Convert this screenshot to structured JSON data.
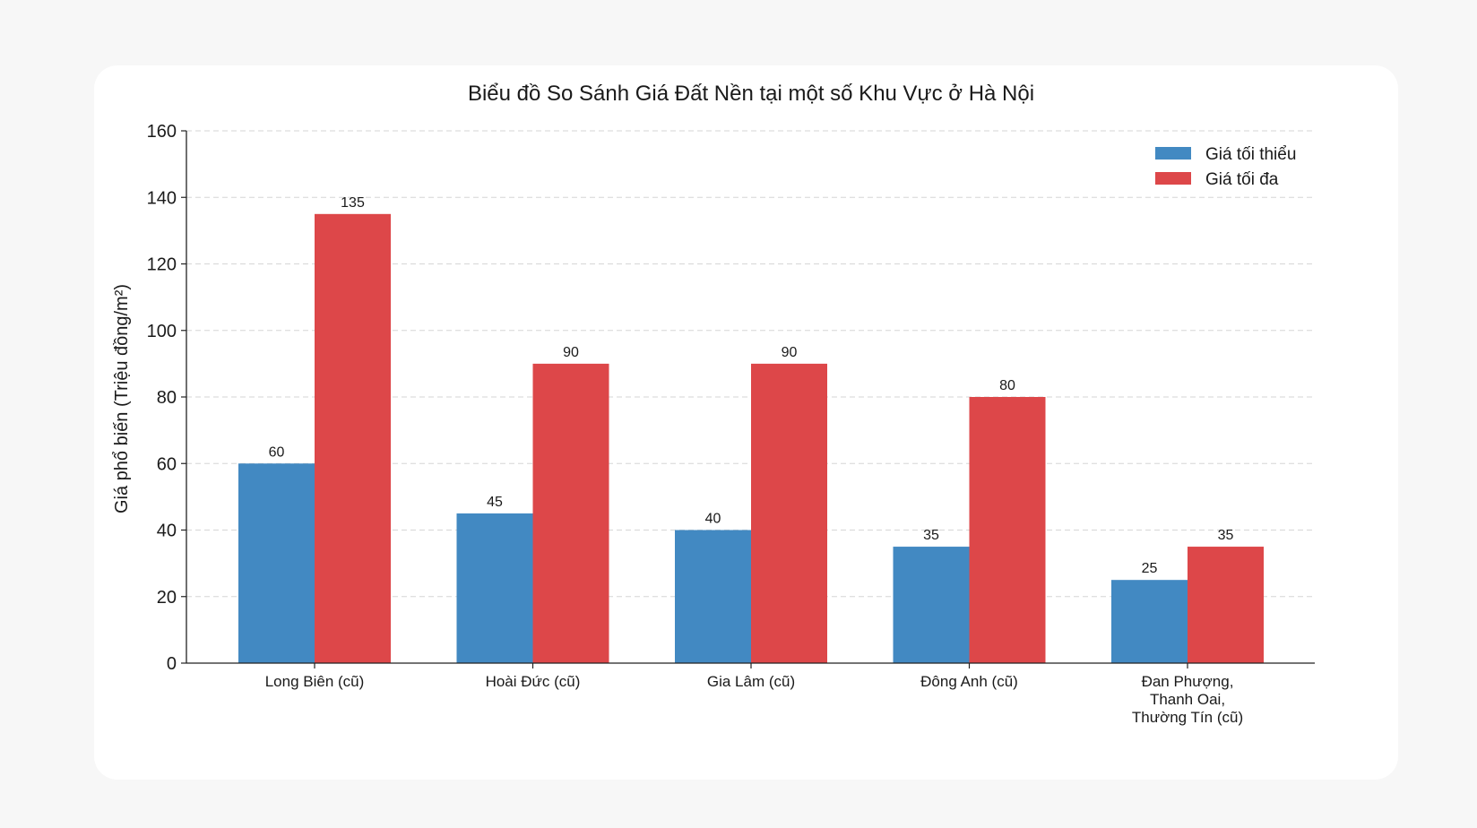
{
  "chart_data": {
    "type": "bar",
    "title": "Biểu đồ So Sánh Giá Đất Nền tại một số Khu Vực ở Hà Nội",
    "xlabel": "",
    "ylabel": "Giá phổ biến (Triệu đồng/m²)",
    "ylim": [
      0,
      160
    ],
    "yticks": [
      0,
      20,
      40,
      60,
      80,
      100,
      120,
      140,
      160
    ],
    "grid": true,
    "legend_position": "top-right",
    "categories": [
      [
        "Long Biên (cũ)"
      ],
      [
        "Hoài Đức (cũ)"
      ],
      [
        "Gia Lâm (cũ)"
      ],
      [
        "Đông Anh (cũ)"
      ],
      [
        "Đan Phượng,",
        "Thanh Oai,",
        "Thường Tín (cũ)"
      ]
    ],
    "series": [
      {
        "name": "Giá tối thiểu",
        "color": "#4289c2",
        "values": [
          60,
          45,
          40,
          35,
          25
        ]
      },
      {
        "name": "Giá tối đa",
        "color": "#dd4749",
        "values": [
          135,
          90,
          90,
          80,
          35
        ]
      }
    ]
  }
}
